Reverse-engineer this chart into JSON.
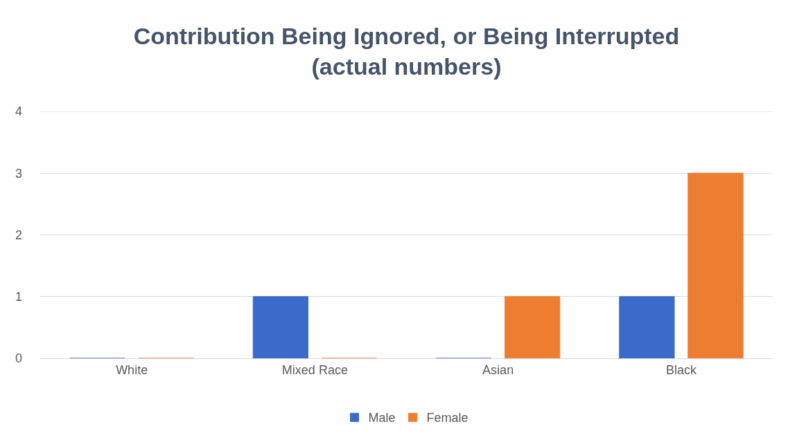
{
  "chart_data": {
    "type": "bar",
    "title": "Contribution Being Ignored, or Being Interrupted (actual numbers)",
    "categories": [
      "White",
      "Mixed Race",
      "Asian",
      "Black"
    ],
    "series": [
      {
        "name": "Male",
        "color": "#3a6bc9",
        "values": [
          0,
          1,
          0,
          1
        ]
      },
      {
        "name": "Female",
        "color": "#ed7d31",
        "values": [
          0,
          0,
          1,
          3
        ]
      }
    ],
    "ylim": [
      0,
      4
    ],
    "yticks": [
      0,
      1,
      2,
      3,
      4
    ],
    "grid": "y",
    "legend": "bottom"
  }
}
